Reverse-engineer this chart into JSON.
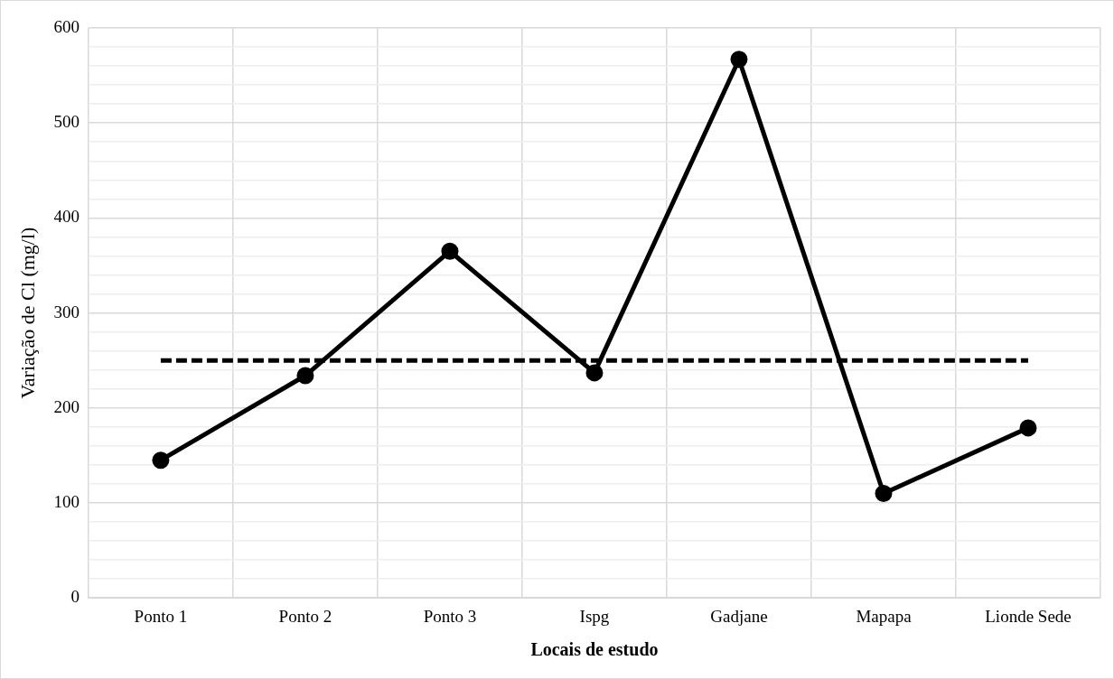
{
  "chart_data": {
    "type": "line",
    "xlabel": "Locais de estudo",
    "ylabel": "Variação de Cl (mg/l)",
    "categories": [
      "Ponto 1",
      "Ponto 2",
      "Ponto 3",
      "Ispg",
      "Gadjane",
      "Mapapa",
      "Lionde Sede"
    ],
    "series": [
      {
        "color": "#000000",
        "values": [
          145,
          234,
          365,
          237,
          567,
          110,
          179
        ],
        "marker": "circle",
        "line_style": "solid"
      },
      {
        "color": "#000000",
        "values": [
          250,
          250,
          250,
          250,
          250,
          250,
          250
        ],
        "marker": "none",
        "line_style": "dashed"
      }
    ],
    "ylim": [
      0,
      600
    ],
    "yticks": [
      0,
      {
        "value": 20,
        "label": null
      },
      {
        "value": 40,
        "label": null
      },
      {
        "value": 60,
        "label": null
      },
      {
        "value": 80,
        "label": null
      },
      100,
      {
        "value": 120,
        "label": null
      },
      {
        "value": 140,
        "label": null
      },
      {
        "value": 160,
        "label": null
      },
      {
        "value": 180,
        "label": null
      },
      200,
      {
        "value": 220,
        "label": null
      },
      {
        "value": 240,
        "label": null
      },
      {
        "value": 260,
        "label": null
      },
      {
        "value": 280,
        "label": null
      },
      300,
      {
        "value": 320,
        "label": null
      },
      {
        "value": 340,
        "label": null
      },
      {
        "value": 360,
        "label": null
      },
      {
        "value": 380,
        "label": null
      },
      400,
      {
        "value": 420,
        "label": null
      },
      {
        "value": 440,
        "label": null
      },
      {
        "value": 460,
        "label": null
      },
      {
        "value": 480,
        "label": null
      },
      500,
      {
        "value": 520,
        "label": null
      },
      {
        "value": 540,
        "label": null
      },
      {
        "value": 560,
        "label": null
      },
      {
        "value": 580,
        "label": null
      },
      600
    ],
    "grid": true,
    "legend": false
  }
}
